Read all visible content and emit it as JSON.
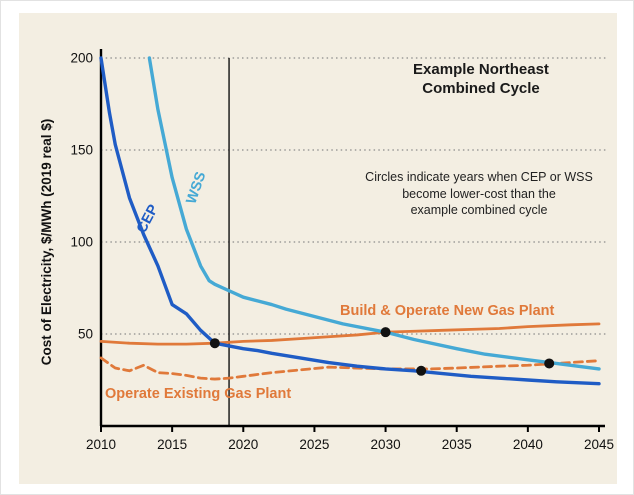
{
  "chart_data": {
    "type": "line",
    "title": "",
    "ylabel": "Cost of Electricity, $/MWh (2019 real $)",
    "xlabel": "",
    "xlim": [
      2010,
      2045
    ],
    "ylim": [
      0,
      200
    ],
    "x_ticks": [
      2010,
      2015,
      2020,
      2025,
      2030,
      2035,
      2040,
      2045
    ],
    "y_ticks": [
      50,
      100,
      150,
      200
    ],
    "gridlines_y": [
      50,
      100,
      150,
      200
    ],
    "grid_style": "dotted horizontal",
    "vertical_line_x": 2019,
    "legend_position": "labels on lines",
    "annotations": {
      "heading_lines": [
        "Example Northeast",
        "Combined Cycle"
      ],
      "note_lines": [
        "Circles indicate years when CEP or WSS",
        "become lower-cost than the",
        "example combined cycle"
      ]
    },
    "series": [
      {
        "name": "CEP",
        "color": "#1f5cc5",
        "style": "solid",
        "stroke_width": 3.4,
        "points": [
          [
            2010,
            200
          ],
          [
            2010.6,
            170
          ],
          [
            2011,
            153
          ],
          [
            2012,
            124
          ],
          [
            2013,
            104
          ],
          [
            2014,
            87
          ],
          [
            2015,
            66
          ],
          [
            2016,
            61
          ],
          [
            2017,
            52
          ],
          [
            2018,
            45
          ],
          [
            2019,
            43.5
          ],
          [
            2020,
            42
          ],
          [
            2021,
            41
          ],
          [
            2022,
            39.5
          ],
          [
            2024,
            37
          ],
          [
            2026,
            34.5
          ],
          [
            2028,
            32.5
          ],
          [
            2030,
            31
          ],
          [
            2032,
            30
          ],
          [
            2034,
            28.5
          ],
          [
            2036,
            27
          ],
          [
            2038,
            26
          ],
          [
            2040,
            25
          ],
          [
            2042,
            24
          ],
          [
            2045,
            23
          ]
        ]
      },
      {
        "name": "WSS",
        "color": "#45a9d5",
        "style": "solid",
        "stroke_width": 3.4,
        "points": [
          [
            2013.4,
            200
          ],
          [
            2014,
            172
          ],
          [
            2015,
            135
          ],
          [
            2016,
            107
          ],
          [
            2017,
            87
          ],
          [
            2017.6,
            79
          ],
          [
            2018,
            77
          ],
          [
            2019,
            73.5
          ],
          [
            2020,
            70
          ],
          [
            2021,
            68
          ],
          [
            2022,
            66
          ],
          [
            2023,
            63.5
          ],
          [
            2025,
            59.5
          ],
          [
            2027,
            55.5
          ],
          [
            2030,
            51
          ],
          [
            2032,
            47
          ],
          [
            2035,
            42
          ],
          [
            2037,
            39
          ],
          [
            2040,
            36
          ],
          [
            2042,
            34
          ],
          [
            2045,
            31
          ]
        ]
      },
      {
        "name": "Build & Operate New Gas Plant",
        "color": "#e0793a",
        "style": "solid",
        "stroke_width": 2.8,
        "points": [
          [
            2010,
            46
          ],
          [
            2012,
            45
          ],
          [
            2014,
            44.5
          ],
          [
            2016,
            44.5
          ],
          [
            2018,
            45
          ],
          [
            2020,
            46
          ],
          [
            2022,
            46.5
          ],
          [
            2024,
            47.5
          ],
          [
            2026,
            48.5
          ],
          [
            2028,
            49.5
          ],
          [
            2030,
            51
          ],
          [
            2032,
            51.5
          ],
          [
            2034,
            52
          ],
          [
            2036,
            52.5
          ],
          [
            2038,
            53
          ],
          [
            2040,
            54
          ],
          [
            2043,
            55
          ],
          [
            2045,
            55.5
          ]
        ]
      },
      {
        "name": "Operate Existing Gas Plant",
        "color": "#e0793a",
        "style": "dashed",
        "stroke_width": 2.8,
        "points": [
          [
            2010,
            37
          ],
          [
            2011,
            31.5
          ],
          [
            2012,
            30
          ],
          [
            2013,
            33
          ],
          [
            2014,
            29
          ],
          [
            2015,
            28.5
          ],
          [
            2016,
            27.5
          ],
          [
            2017,
            26
          ],
          [
            2018,
            25.5
          ],
          [
            2019,
            26
          ],
          [
            2020,
            27
          ],
          [
            2022,
            29
          ],
          [
            2024,
            30.5
          ],
          [
            2026,
            32
          ],
          [
            2028,
            31.5
          ],
          [
            2030,
            31
          ],
          [
            2033,
            31
          ],
          [
            2035,
            31.5
          ],
          [
            2038,
            32.5
          ],
          [
            2040,
            33
          ],
          [
            2042,
            34
          ],
          [
            2045,
            35.5
          ]
        ]
      }
    ],
    "markers": [
      {
        "x": 2018,
        "y": 45,
        "meaning": "CEP becomes lower-cost than new gas plant"
      },
      {
        "x": 2030,
        "y": 51,
        "meaning": "WSS becomes lower-cost than new gas plant"
      },
      {
        "x": 2032.5,
        "y": 30,
        "meaning": "CEP becomes lower-cost than existing gas plant"
      },
      {
        "x": 2041.5,
        "y": 34,
        "meaning": "WSS becomes lower-cost than existing gas plant"
      }
    ]
  },
  "colors": {
    "panel_background": "#f3eee2",
    "cep_blue": "#1f5cc5",
    "wss_blue": "#45a9d5",
    "gas_orange": "#e0793a",
    "marker_black": "#111111",
    "gridline_gray": "#8a8a8a"
  }
}
